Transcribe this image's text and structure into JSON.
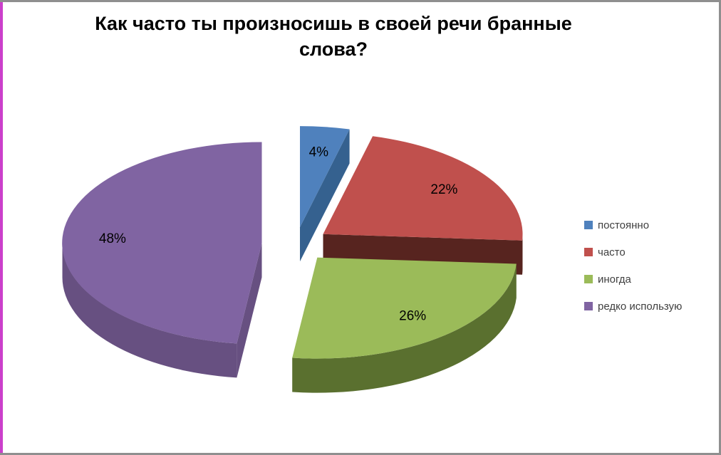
{
  "page": {
    "background": "#ffffff",
    "frame_border_color": "#8f8f8f",
    "left_strip_color": "#cb3fcb"
  },
  "chart_data": {
    "type": "pie",
    "style": "3d-exploded",
    "title": "Как часто ты произносишь в своей речи бранные слова?",
    "categories": [
      "постоянно",
      "часто",
      "иногда",
      "редко использую"
    ],
    "values": [
      4,
      22,
      26,
      48
    ],
    "unit": "%",
    "labels": [
      "4%",
      "22%",
      "26%",
      "48%"
    ],
    "colors": [
      "#4f81bd",
      "#c0504d",
      "#9bbb59",
      "#8064a2"
    ],
    "side_colors": [
      "#35618f",
      "#57241f",
      "#5a702f",
      "#675081"
    ],
    "label_color": "#000000",
    "legend_position": "right",
    "legend_text_color": "#3f3f3f",
    "start_angle_deg": 0,
    "direction": "clockwise",
    "background": "#ffffff",
    "grid": false
  }
}
